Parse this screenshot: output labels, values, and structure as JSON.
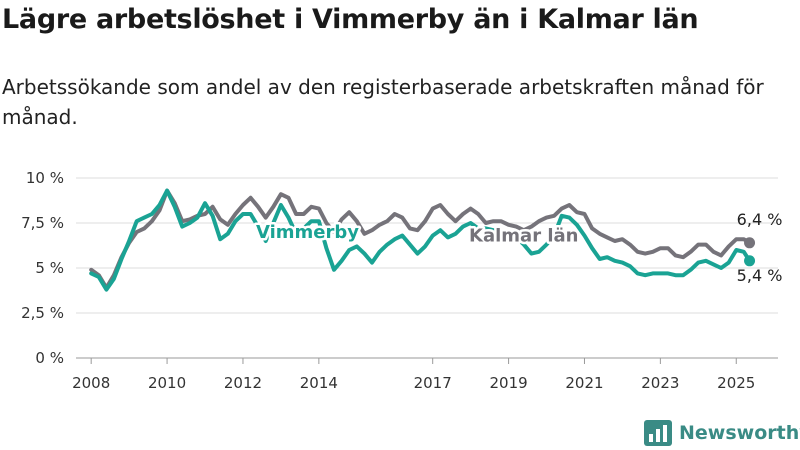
{
  "title": "Lägre arbetslöshet i Vimmerby än i Kalmar län",
  "subtitle": "Arbetssökande som andel av den registerbaserade arbetskraften månad för månad.",
  "brand": {
    "name": "Newsworthy",
    "icon": "bar-chart-logo-icon",
    "color": "#3a8b85"
  },
  "chart_data": {
    "type": "line",
    "title": "",
    "xlabel": "",
    "ylabel": "",
    "ylim": [
      0,
      10
    ],
    "xlim": [
      2007.6,
      2026.1
    ],
    "grid": true,
    "legend": "inline",
    "y_ticks": [
      {
        "value": 0,
        "label": "0 %"
      },
      {
        "value": 2.5,
        "label": "2,5 %"
      },
      {
        "value": 5,
        "label": "5 %"
      },
      {
        "value": 7.5,
        "label": "7,5 %"
      },
      {
        "value": 10,
        "label": "10 %"
      }
    ],
    "x_ticks": [
      {
        "value": 2008,
        "label": "2008"
      },
      {
        "value": 2010,
        "label": "2010"
      },
      {
        "value": 2012,
        "label": "2012"
      },
      {
        "value": 2014,
        "label": "2014"
      },
      {
        "value": 2017,
        "label": "2017"
      },
      {
        "value": 2019,
        "label": "2019"
      },
      {
        "value": 2021,
        "label": "2021"
      },
      {
        "value": 2023,
        "label": "2023"
      },
      {
        "value": 2025,
        "label": "2025"
      }
    ],
    "series": [
      {
        "name": "Kalmar län",
        "color": "#75737a",
        "end_label": "6,4 %",
        "points": [
          [
            2008.0,
            4.9
          ],
          [
            2008.2,
            4.6
          ],
          [
            2008.4,
            3.9
          ],
          [
            2008.6,
            4.6
          ],
          [
            2008.8,
            5.6
          ],
          [
            2009.0,
            6.4
          ],
          [
            2009.2,
            7.0
          ],
          [
            2009.4,
            7.2
          ],
          [
            2009.6,
            7.6
          ],
          [
            2009.8,
            8.2
          ],
          [
            2010.0,
            9.3
          ],
          [
            2010.2,
            8.6
          ],
          [
            2010.4,
            7.6
          ],
          [
            2010.6,
            7.7
          ],
          [
            2010.8,
            7.9
          ],
          [
            2011.0,
            8.0
          ],
          [
            2011.2,
            8.4
          ],
          [
            2011.4,
            7.7
          ],
          [
            2011.6,
            7.4
          ],
          [
            2011.8,
            8.0
          ],
          [
            2012.0,
            8.5
          ],
          [
            2012.2,
            8.9
          ],
          [
            2012.4,
            8.4
          ],
          [
            2012.6,
            7.8
          ],
          [
            2012.8,
            8.4
          ],
          [
            2013.0,
            9.1
          ],
          [
            2013.2,
            8.9
          ],
          [
            2013.4,
            8.0
          ],
          [
            2013.6,
            8.0
          ],
          [
            2013.8,
            8.4
          ],
          [
            2014.0,
            8.3
          ],
          [
            2014.2,
            7.5
          ],
          [
            2014.4,
            7.0
          ],
          [
            2014.6,
            7.7
          ],
          [
            2014.8,
            8.1
          ],
          [
            2015.0,
            7.6
          ],
          [
            2015.2,
            6.9
          ],
          [
            2015.4,
            7.1
          ],
          [
            2015.6,
            7.4
          ],
          [
            2015.8,
            7.6
          ],
          [
            2016.0,
            8.0
          ],
          [
            2016.2,
            7.8
          ],
          [
            2016.4,
            7.2
          ],
          [
            2016.6,
            7.1
          ],
          [
            2016.8,
            7.6
          ],
          [
            2017.0,
            8.3
          ],
          [
            2017.2,
            8.5
          ],
          [
            2017.4,
            8.0
          ],
          [
            2017.6,
            7.6
          ],
          [
            2017.8,
            8.0
          ],
          [
            2018.0,
            8.3
          ],
          [
            2018.2,
            8.0
          ],
          [
            2018.4,
            7.5
          ],
          [
            2018.6,
            7.6
          ],
          [
            2018.8,
            7.6
          ],
          [
            2019.0,
            7.4
          ],
          [
            2019.2,
            7.3
          ],
          [
            2019.4,
            7.1
          ],
          [
            2019.6,
            7.3
          ],
          [
            2019.8,
            7.6
          ],
          [
            2020.0,
            7.8
          ],
          [
            2020.2,
            7.9
          ],
          [
            2020.4,
            8.3
          ],
          [
            2020.6,
            8.5
          ],
          [
            2020.8,
            8.1
          ],
          [
            2021.0,
            8.0
          ],
          [
            2021.2,
            7.2
          ],
          [
            2021.4,
            6.9
          ],
          [
            2021.6,
            6.7
          ],
          [
            2021.8,
            6.5
          ],
          [
            2022.0,
            6.6
          ],
          [
            2022.2,
            6.3
          ],
          [
            2022.4,
            5.9
          ],
          [
            2022.6,
            5.8
          ],
          [
            2022.8,
            5.9
          ],
          [
            2023.0,
            6.1
          ],
          [
            2023.2,
            6.1
          ],
          [
            2023.4,
            5.7
          ],
          [
            2023.6,
            5.6
          ],
          [
            2023.8,
            5.9
          ],
          [
            2024.0,
            6.3
          ],
          [
            2024.2,
            6.3
          ],
          [
            2024.4,
            5.9
          ],
          [
            2024.6,
            5.7
          ],
          [
            2024.8,
            6.2
          ],
          [
            2025.0,
            6.6
          ],
          [
            2025.2,
            6.6
          ],
          [
            2025.35,
            6.4
          ]
        ]
      },
      {
        "name": "Vimmerby",
        "color": "#1aa394",
        "end_label": "5,4 %",
        "points": [
          [
            2008.0,
            4.7
          ],
          [
            2008.2,
            4.5
          ],
          [
            2008.4,
            3.8
          ],
          [
            2008.6,
            4.4
          ],
          [
            2008.8,
            5.5
          ],
          [
            2009.0,
            6.5
          ],
          [
            2009.2,
            7.6
          ],
          [
            2009.4,
            7.8
          ],
          [
            2009.6,
            8.0
          ],
          [
            2009.8,
            8.5
          ],
          [
            2010.0,
            9.3
          ],
          [
            2010.2,
            8.4
          ],
          [
            2010.4,
            7.3
          ],
          [
            2010.6,
            7.5
          ],
          [
            2010.8,
            7.8
          ],
          [
            2011.0,
            8.6
          ],
          [
            2011.2,
            7.9
          ],
          [
            2011.4,
            6.6
          ],
          [
            2011.6,
            6.9
          ],
          [
            2011.8,
            7.6
          ],
          [
            2012.0,
            8.0
          ],
          [
            2012.2,
            8.0
          ],
          [
            2012.4,
            7.3
          ],
          [
            2012.6,
            6.5
          ],
          [
            2012.8,
            7.5
          ],
          [
            2013.0,
            8.5
          ],
          [
            2013.2,
            7.8
          ],
          [
            2013.4,
            6.9
          ],
          [
            2013.6,
            7.2
          ],
          [
            2013.8,
            7.6
          ],
          [
            2014.0,
            7.6
          ],
          [
            2014.2,
            6.1
          ],
          [
            2014.4,
            4.9
          ],
          [
            2014.6,
            5.4
          ],
          [
            2014.8,
            6.0
          ],
          [
            2015.0,
            6.2
          ],
          [
            2015.2,
            5.8
          ],
          [
            2015.4,
            5.3
          ],
          [
            2015.6,
            5.9
          ],
          [
            2015.8,
            6.3
          ],
          [
            2016.0,
            6.6
          ],
          [
            2016.2,
            6.8
          ],
          [
            2016.4,
            6.3
          ],
          [
            2016.6,
            5.8
          ],
          [
            2016.8,
            6.2
          ],
          [
            2017.0,
            6.8
          ],
          [
            2017.2,
            7.1
          ],
          [
            2017.4,
            6.7
          ],
          [
            2017.6,
            6.9
          ],
          [
            2017.8,
            7.3
          ],
          [
            2018.0,
            7.5
          ],
          [
            2018.2,
            7.2
          ],
          [
            2018.4,
            7.2
          ],
          [
            2018.6,
            7.1
          ],
          [
            2018.8,
            6.8
          ],
          [
            2019.0,
            6.9
          ],
          [
            2019.2,
            6.7
          ],
          [
            2019.4,
            6.3
          ],
          [
            2019.6,
            5.8
          ],
          [
            2019.8,
            5.9
          ],
          [
            2020.0,
            6.3
          ],
          [
            2020.2,
            6.8
          ],
          [
            2020.4,
            7.9
          ],
          [
            2020.6,
            7.8
          ],
          [
            2020.8,
            7.4
          ],
          [
            2021.0,
            6.8
          ],
          [
            2021.2,
            6.1
          ],
          [
            2021.4,
            5.5
          ],
          [
            2021.6,
            5.6
          ],
          [
            2021.8,
            5.4
          ],
          [
            2022.0,
            5.3
          ],
          [
            2022.2,
            5.1
          ],
          [
            2022.4,
            4.7
          ],
          [
            2022.6,
            4.6
          ],
          [
            2022.8,
            4.7
          ],
          [
            2023.0,
            4.7
          ],
          [
            2023.2,
            4.7
          ],
          [
            2023.4,
            4.6
          ],
          [
            2023.6,
            4.6
          ],
          [
            2023.8,
            4.9
          ],
          [
            2024.0,
            5.3
          ],
          [
            2024.2,
            5.4
          ],
          [
            2024.4,
            5.2
          ],
          [
            2024.6,
            5.0
          ],
          [
            2024.8,
            5.3
          ],
          [
            2025.0,
            6.0
          ],
          [
            2025.2,
            5.9
          ],
          [
            2025.35,
            5.4
          ]
        ]
      }
    ],
    "inline_labels": [
      {
        "series": "Vimmerby",
        "text": "Vimmerby",
        "x": 2013.7,
        "y": 7.0
      },
      {
        "series": "Kalmar län",
        "text": "Kalmar län",
        "x": 2019.4,
        "y": 6.8
      }
    ]
  }
}
